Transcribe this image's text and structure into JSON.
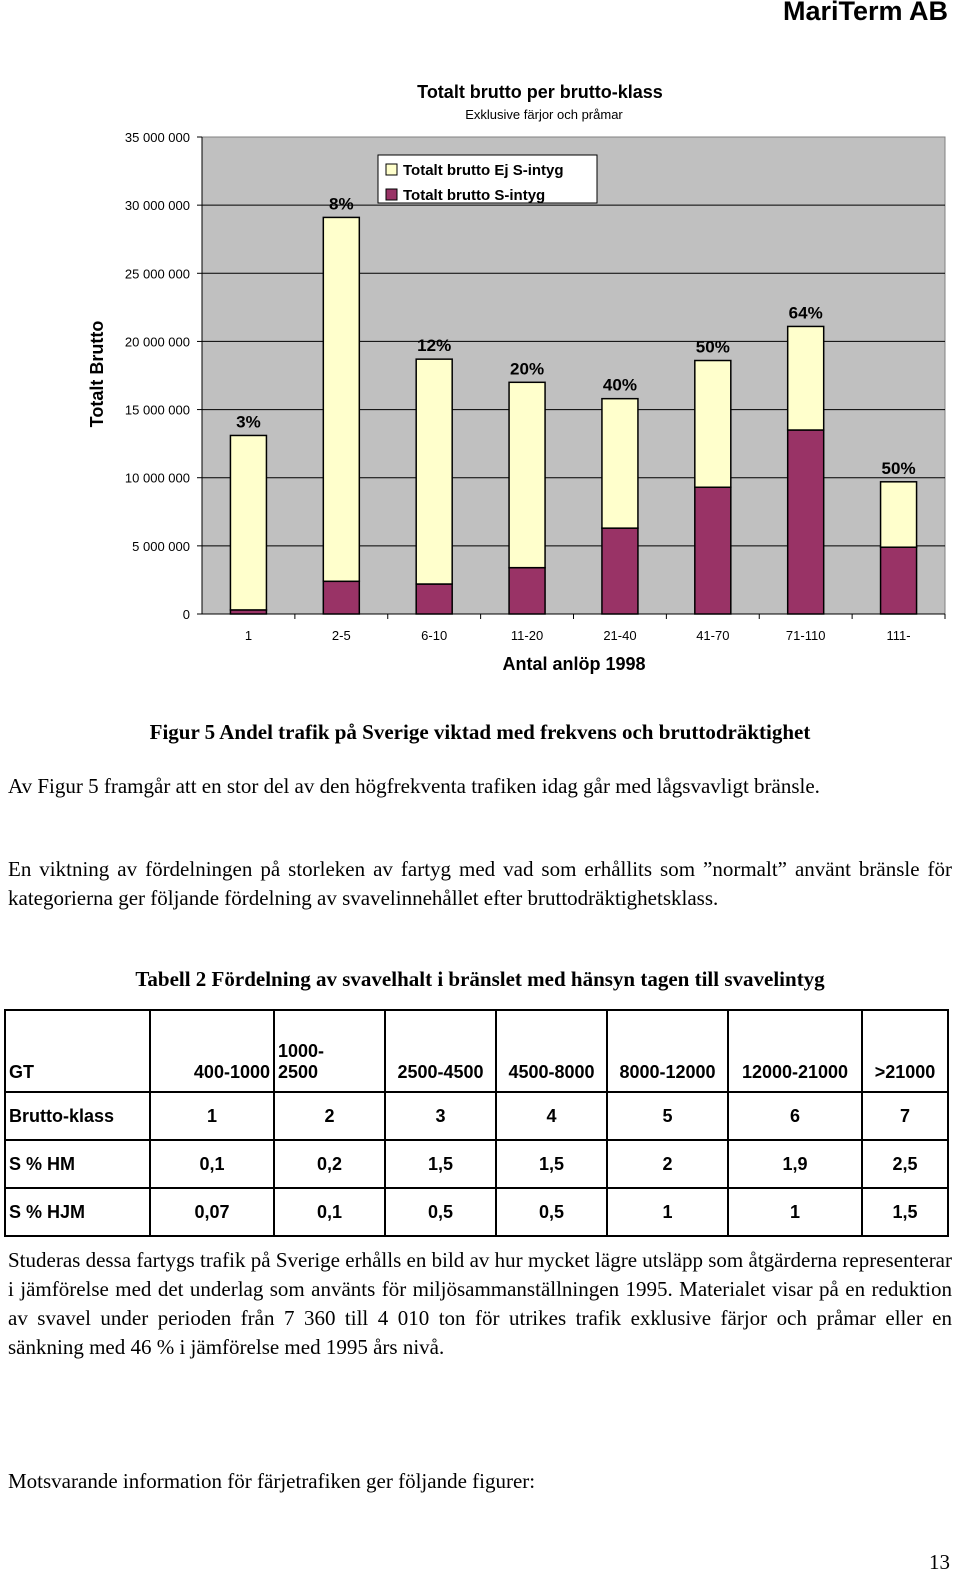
{
  "header": {
    "company": "MariTerm AB"
  },
  "chart_data": {
    "type": "bar",
    "stacked": true,
    "title": "Totalt brutto per brutto-klass",
    "subtitle": "Exklusive färjor och pråmar",
    "xlabel": "Antal anlöp 1998",
    "ylabel": "Totalt Brutto",
    "ylim": [
      0,
      35000000
    ],
    "yticks": [
      "0",
      "5 000 000",
      "10 000 000",
      "15 000 000",
      "20 000 000",
      "25 000 000",
      "30 000 000",
      "35 000 000"
    ],
    "ytick_values": [
      0,
      5000000,
      10000000,
      15000000,
      20000000,
      25000000,
      30000000,
      35000000
    ],
    "categories": [
      "1",
      "2-5",
      "6-10",
      "11-20",
      "21-40",
      "41-70",
      "71-110",
      "111-"
    ],
    "series": [
      {
        "name": "Totalt brutto S-intyg",
        "color": "#993366",
        "values": [
          300000,
          2400000,
          2200000,
          3400000,
          6300000,
          9300000,
          13500000,
          4900000
        ]
      },
      {
        "name": "Totalt brutto Ej S-intyg",
        "color": "#ffffcc",
        "values": [
          12800000,
          26700000,
          16500000,
          13600000,
          9500000,
          9300000,
          7600000,
          4800000
        ]
      }
    ],
    "bar_labels": [
      "3%",
      "8%",
      "12%",
      "20%",
      "40%",
      "50%",
      "64%",
      "50%"
    ],
    "legend_position": "top-center",
    "grid": true,
    "plot_background": "#c0c0c0"
  },
  "figure_caption": "Figur 5 Andel trafik på Sverige viktad med frekvens och bruttodräktighet",
  "paragraphs": {
    "p1": "Av Figur 5 framgår att en stor del av den högfrekventa trafiken idag går med lågsvavligt bränsle.",
    "p2": "En viktning av fördelningen på storleken av fartyg med vad som erhållits som ”normalt” använt bränsle för kategorierna ger följande fördelning av svavelinnehållet efter bruttodräktighetsklass.",
    "p3": "Studeras dessa fartygs trafik på Sverige erhålls en bild av hur mycket lägre utsläpp som åtgärderna representerar i jämförelse med det underlag som använts för miljösammanställningen 1995. Materialet visar på en reduktion av svavel under perioden från 7 360 till 4 010 ton för utrikes trafik exklusive färjor och pråmar eller en sänkning med 46 % i jämförelse med 1995 års nivå.",
    "p4": "Motsvarande information för färjetrafiken ger följande figurer:"
  },
  "table": {
    "caption": "Tabell 2 Fördelning av svavelhalt i bränslet med hänsyn tagen till svavelintyg",
    "rows": [
      [
        "GT",
        "400-1000",
        "1000-\n2500",
        "2500-4500",
        "4500-8000",
        "8000-12000",
        "12000-21000",
        ">21000"
      ],
      [
        "Brutto-klass",
        "1",
        "2",
        "3",
        "4",
        "5",
        "6",
        "7"
      ],
      [
        "S % HM",
        "0,1",
        "0,2",
        "1,5",
        "1,5",
        "2",
        "1,9",
        "2,5"
      ],
      [
        "S % HJM",
        "0,07",
        "0,1",
        "0,5",
        "0,5",
        "1",
        "1",
        "1,5"
      ]
    ]
  },
  "page_number": "13"
}
